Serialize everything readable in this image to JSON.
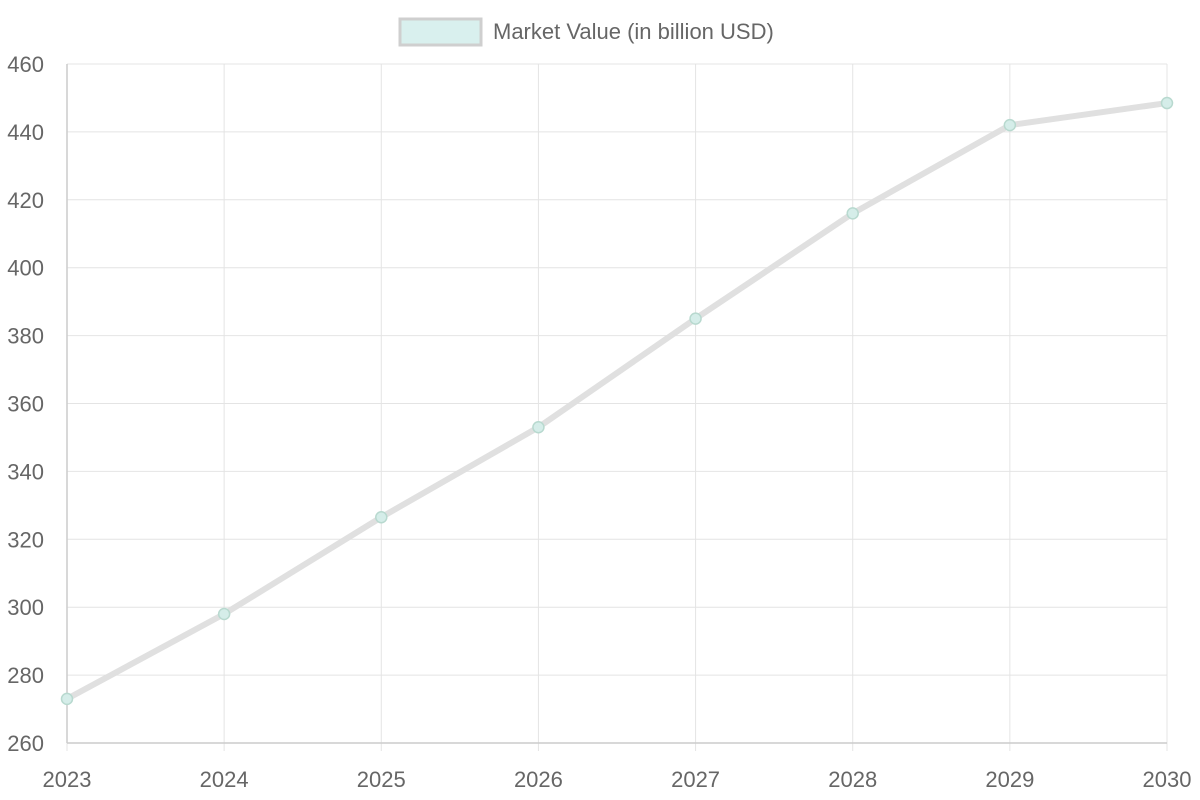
{
  "chart_data": {
    "type": "line",
    "categories": [
      "2023",
      "2024",
      "2025",
      "2026",
      "2027",
      "2028",
      "2029",
      "2030"
    ],
    "series": [
      {
        "name": "Market Value (in billion USD)",
        "values": [
          273,
          298,
          326.5,
          353,
          385,
          416,
          442,
          448.5
        ]
      }
    ],
    "title": "",
    "xlabel": "",
    "ylabel": "",
    "ylim": [
      260,
      460
    ],
    "yticks": [
      "260",
      "280",
      "300",
      "320",
      "340",
      "360",
      "380",
      "400",
      "420",
      "440",
      "460"
    ],
    "grid": true,
    "legend_position": "top-center",
    "colors": {
      "line": "#e0e0e0",
      "point_fill": "#d5ede9",
      "point_stroke": "#b8d9cf",
      "legend_fill": "#d9f0ee",
      "legend_stroke": "#cfcfcf",
      "grid": "#e4e4e4",
      "axis": "#cccccc"
    }
  }
}
